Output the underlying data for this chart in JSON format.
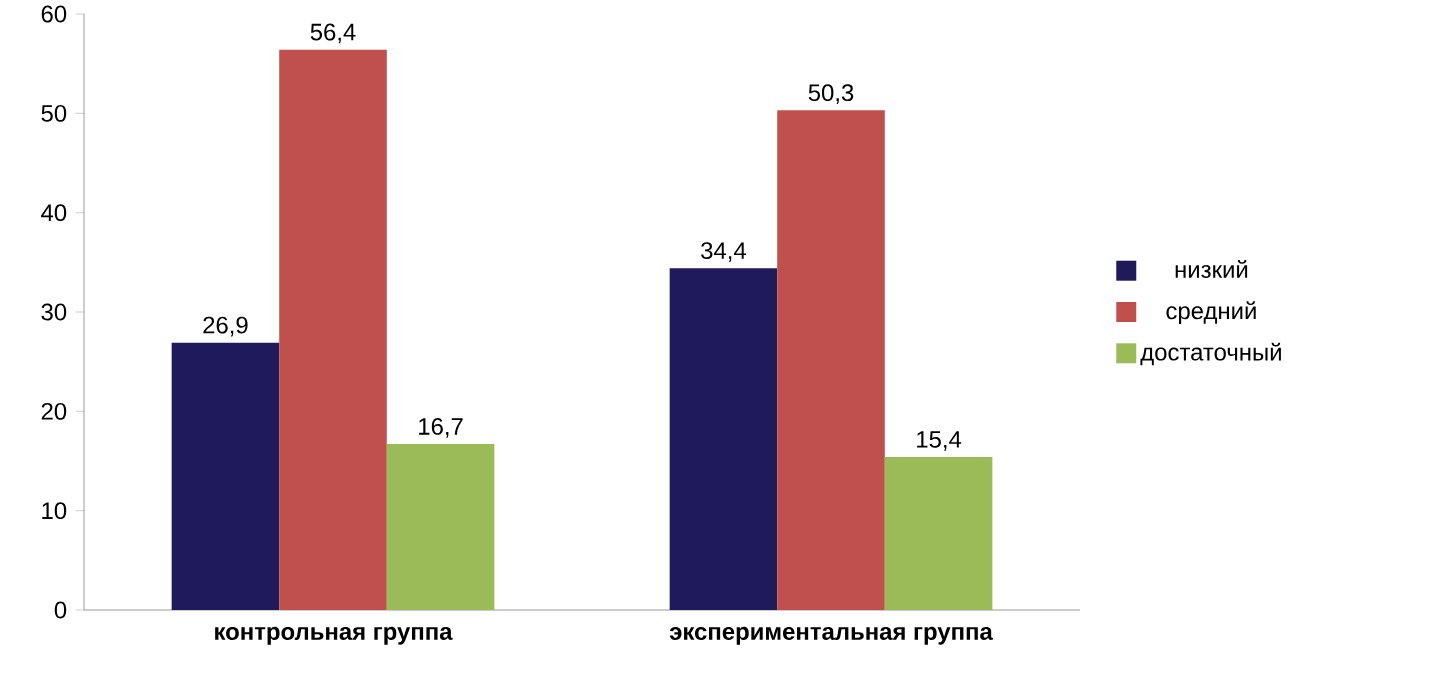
{
  "chart_data": {
    "type": "bar",
    "categories": [
      "контрольная группа",
      "экспериментальная группа"
    ],
    "series": [
      {
        "name": "низкий",
        "color": "#1f1a5a",
        "values": [
          26.9,
          34.4
        ],
        "value_labels": [
          "26,9",
          "34,4"
        ]
      },
      {
        "name": "средний",
        "color": "#c0504d",
        "values": [
          56.4,
          50.3
        ],
        "value_labels": [
          "56,4",
          "50,3"
        ]
      },
      {
        "name": "достаточный",
        "color": "#9bbb59",
        "values": [
          16.7,
          15.4
        ],
        "value_labels": [
          "16,7",
          "15,4"
        ]
      }
    ],
    "ylim": [
      0,
      60
    ],
    "yticks": [
      0,
      10,
      20,
      30,
      40,
      50,
      60
    ],
    "legend": "right",
    "grid": false
  }
}
